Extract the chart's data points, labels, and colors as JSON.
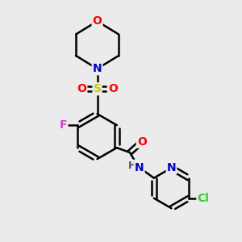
{
  "background_color": "#ebebeb",
  "atom_colors": {
    "C": "#000000",
    "N": "#0000cc",
    "O": "#ff0000",
    "S": "#cccc00",
    "F": "#cc44cc",
    "Cl": "#33cc33",
    "H": "#555555"
  },
  "bond_color": "#000000",
  "bond_width": 1.8,
  "font_size": 10,
  "fig_size": [
    3.0,
    3.0
  ],
  "dpi": 100
}
